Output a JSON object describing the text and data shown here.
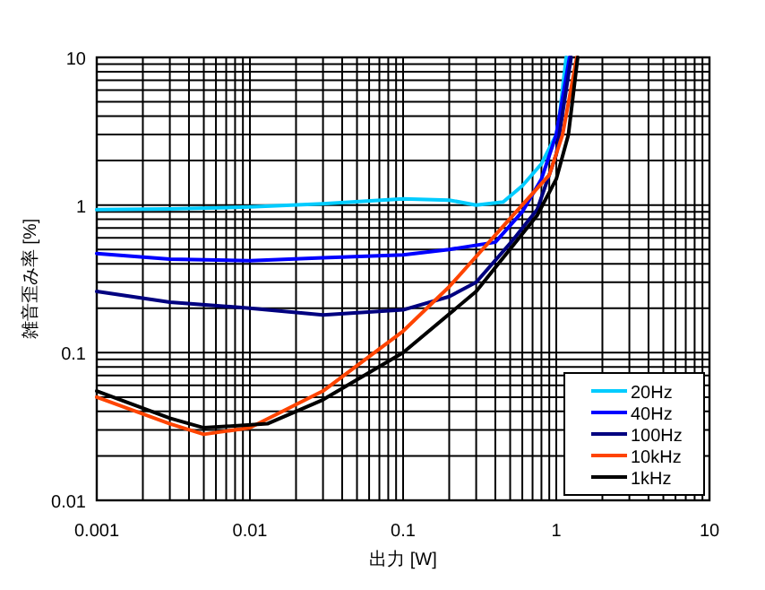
{
  "chart_data": {
    "type": "line",
    "xlabel": "出力 [W]",
    "ylabel": "雑音歪み率 [%]",
    "log": "xy",
    "grid": true,
    "legend": "bottom right",
    "line_style": "solid",
    "xlim": [
      0.001,
      10
    ],
    "xticks": [
      0.001,
      0.01,
      0.1,
      1,
      10
    ],
    "ylim": [
      0.01,
      10
    ],
    "yticks": [
      0.01,
      0.1,
      1,
      10
    ],
    "series": [
      {
        "name": "20Hz",
        "color": "#00ccff",
        "x": [
          0.001,
          0.003,
          0.01,
          0.03,
          0.1,
          0.2,
          0.3,
          0.45,
          0.6,
          0.8,
          1.0,
          1.05,
          1.16
        ],
        "values": [
          0.93,
          0.94,
          0.97,
          1.02,
          1.1,
          1.08,
          1.0,
          1.05,
          1.35,
          1.9,
          3.0,
          4.0,
          10
        ]
      },
      {
        "name": "40Hz",
        "color": "#0000ff",
        "x": [
          0.001,
          0.003,
          0.01,
          0.03,
          0.1,
          0.2,
          0.4,
          0.6,
          0.8,
          1.0,
          1.22
        ],
        "values": [
          0.47,
          0.43,
          0.42,
          0.44,
          0.46,
          0.5,
          0.56,
          0.9,
          1.5,
          3,
          10
        ]
      },
      {
        "name": "100Hz",
        "color": "#000080",
        "x": [
          0.001,
          0.003,
          0.01,
          0.03,
          0.1,
          0.2,
          0.3,
          0.5,
          0.75,
          1.0,
          1.25
        ],
        "values": [
          0.26,
          0.22,
          0.2,
          0.18,
          0.195,
          0.24,
          0.3,
          0.55,
          0.93,
          2.2,
          10
        ]
      },
      {
        "name": "10kHz",
        "color": "#ff4400",
        "x": [
          0.001,
          0.003,
          0.005,
          0.01,
          0.03,
          0.1,
          0.2,
          0.44,
          0.9,
          1.1,
          1.36
        ],
        "values": [
          0.05,
          0.033,
          0.028,
          0.031,
          0.055,
          0.14,
          0.28,
          0.7,
          1.6,
          3,
          10
        ]
      },
      {
        "name": "1kHz",
        "color": "#000000",
        "x": [
          0.001,
          0.003,
          0.005,
          0.013,
          0.03,
          0.1,
          0.3,
          0.75,
          1.0,
          1.2,
          1.38
        ],
        "values": [
          0.055,
          0.036,
          0.031,
          0.033,
          0.048,
          0.1,
          0.26,
          0.85,
          1.5,
          3,
          10
        ]
      }
    ]
  }
}
